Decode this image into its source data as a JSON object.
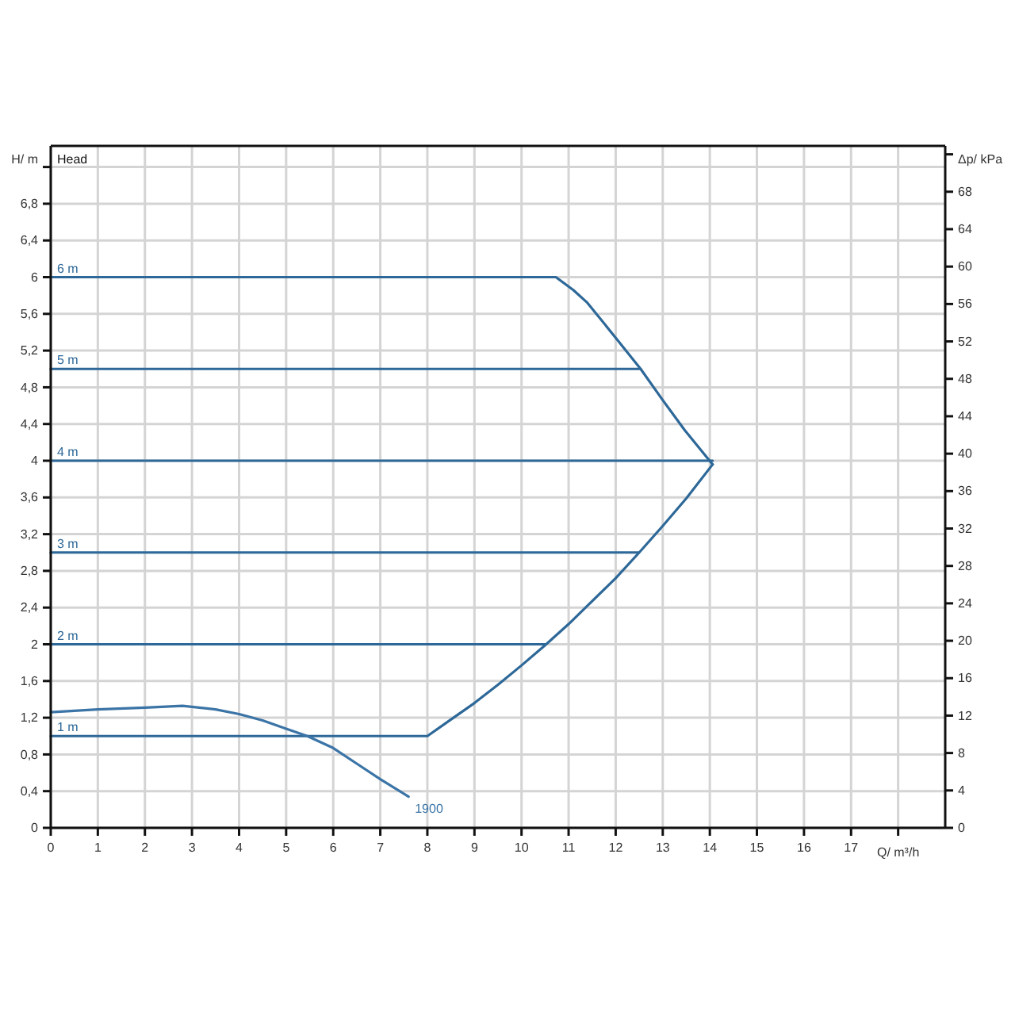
{
  "chart_data": {
    "type": "line",
    "xlabel": "Q/ m³/h",
    "ylabel": "H/ m",
    "y2label": "Δp/ kPa",
    "annotations": [
      "Head"
    ],
    "xlim": [
      0,
      19
    ],
    "ylim": [
      0,
      7.43
    ],
    "y2lim": [
      0,
      72.9
    ],
    "xticks": [
      0,
      1,
      2,
      3,
      4,
      5,
      6,
      7,
      8,
      9,
      10,
      11,
      12,
      13,
      14,
      15,
      16,
      17,
      {
        "value": 18,
        "label": null
      }
    ],
    "yticks": [
      0,
      {
        "value": 0.4,
        "label": "0,4"
      },
      {
        "value": 0.8,
        "label": "0,8"
      },
      {
        "value": 1.2,
        "label": "1,2"
      },
      {
        "value": 1.6,
        "label": "1,6"
      },
      2,
      {
        "value": 2.4,
        "label": "2,4"
      },
      {
        "value": 2.8,
        "label": "2,8"
      },
      {
        "value": 3.2,
        "label": "3,2"
      },
      {
        "value": 3.6,
        "label": "3,6"
      },
      4,
      {
        "value": 4.4,
        "label": "4,4"
      },
      {
        "value": 4.8,
        "label": "4,8"
      },
      {
        "value": 5.2,
        "label": "5,2"
      },
      {
        "value": 5.6,
        "label": "5,6"
      },
      6,
      {
        "value": 6.4,
        "label": "6,4"
      },
      {
        "value": 6.8,
        "label": "6,8"
      },
      {
        "value": 7.2,
        "label": null
      }
    ],
    "y2ticks": [
      0,
      4,
      8,
      12,
      16,
      20,
      24,
      28,
      32,
      36,
      40,
      44,
      48,
      52,
      56,
      60,
      64,
      68,
      {
        "value": 72,
        "label": null
      }
    ],
    "grid": true,
    "series": [
      {
        "name": "6 m",
        "color": "#2d6898",
        "x": [
          0,
          10.73,
          11.1,
          11.4,
          12.0,
          12.53,
          13.0,
          13.47,
          14.06
        ],
        "values": [
          6,
          6,
          5.86,
          5.72,
          5.34,
          5.0,
          4.66,
          4.33,
          3.96
        ]
      },
      {
        "name": "5 m",
        "color": "#2d6898",
        "x": [
          0,
          12.53
        ],
        "values": [
          5,
          5
        ]
      },
      {
        "name": "4 m",
        "color": "#2d6898",
        "x": [
          0,
          14.06
        ],
        "values": [
          4,
          4
        ]
      },
      {
        "name": "3 m",
        "color": "#2d6898",
        "x": [
          0,
          12.48
        ],
        "values": [
          3,
          3
        ]
      },
      {
        "name": "2 m",
        "color": "#2d6898",
        "x": [
          0,
          10.5
        ],
        "values": [
          2,
          2
        ]
      },
      {
        "name": "1 m",
        "color": "#2d6898",
        "x": [
          0,
          8,
          8.5,
          9,
          9.5,
          10,
          10.5,
          11,
          11.4,
          12,
          12.5,
          13,
          13.5,
          14.06
        ],
        "values": [
          1,
          1,
          1.18,
          1.36,
          1.56,
          1.77,
          1.99,
          2.22,
          2.42,
          2.72,
          3.0,
          3.29,
          3.59,
          3.96
        ]
      },
      {
        "name": "1900",
        "color": "#3b74a6",
        "x": [
          0,
          1,
          2,
          2.8,
          3.5,
          4,
          4.5,
          5,
          5.45,
          6,
          6.5,
          7,
          7.6
        ],
        "values": [
          1.26,
          1.29,
          1.31,
          1.33,
          1.29,
          1.24,
          1.17,
          1.08,
          1.0,
          0.87,
          0.7,
          0.53,
          0.34
        ]
      }
    ]
  }
}
